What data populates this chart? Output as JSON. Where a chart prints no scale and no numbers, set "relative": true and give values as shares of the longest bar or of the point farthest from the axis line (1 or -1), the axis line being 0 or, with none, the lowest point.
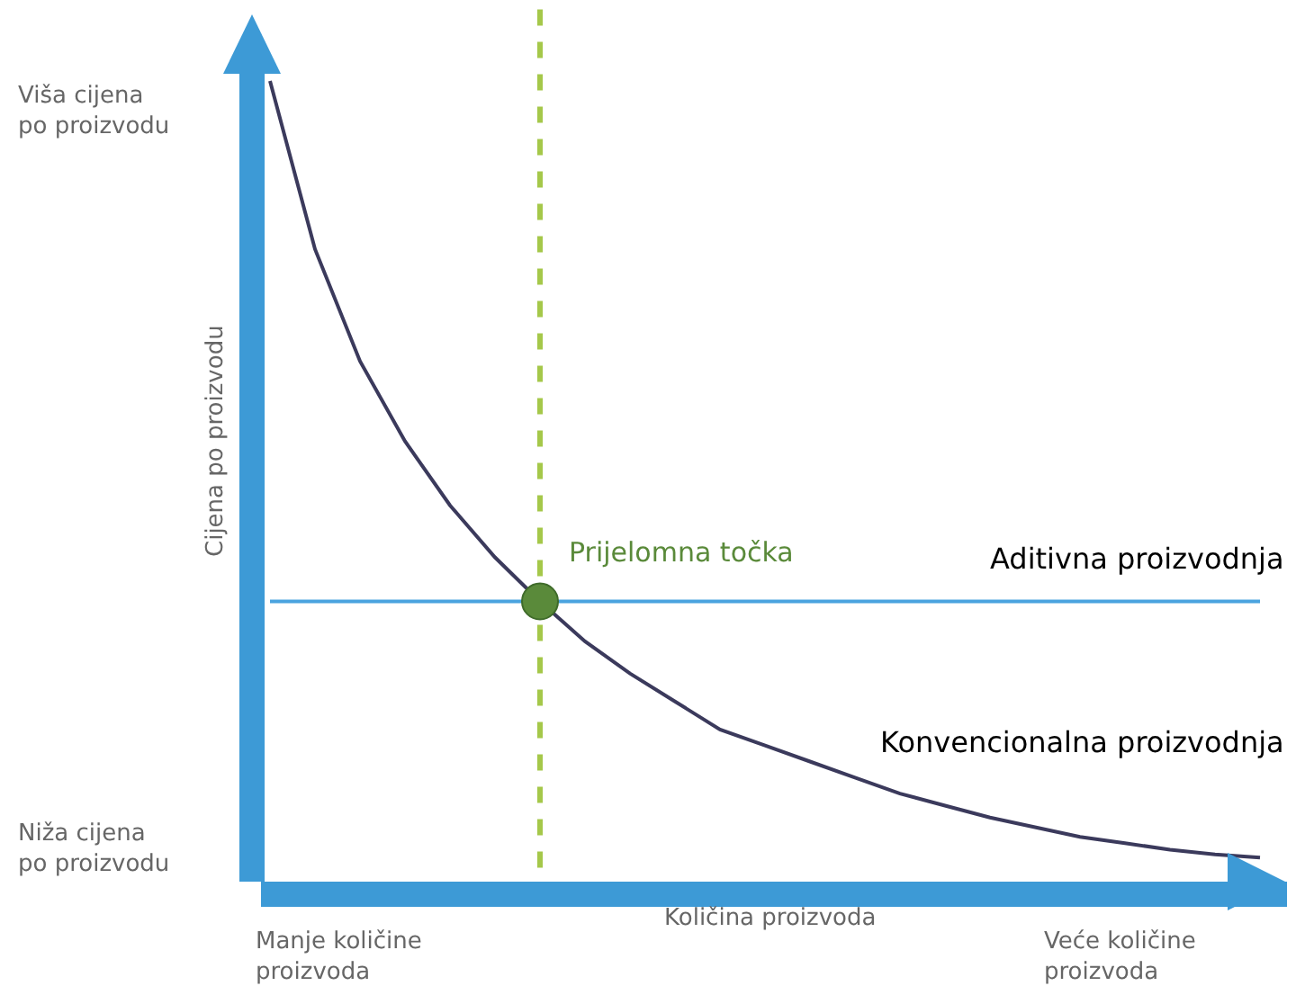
{
  "chart_data": {
    "type": "line",
    "relative": true,
    "xlabel": "Količina proizvoda",
    "ylabel": "Cijena po proizvodu",
    "categories": [
      null,
      null,
      null,
      null,
      null,
      null,
      null,
      null,
      null,
      null,
      null,
      null,
      null,
      null,
      null,
      null,
      null,
      null,
      null,
      null,
      null,
      null,
      null
    ],
    "series": [
      {
        "name": "Aditivna proizvodnja",
        "color": "#4aa3df",
        "values": [
          0.35,
          0.35,
          0.35,
          0.35,
          0.35,
          0.35,
          0.35,
          0.35,
          0.35,
          0.35,
          0.35,
          0.35,
          0.35,
          0.35,
          0.35,
          0.35,
          0.35,
          0.35,
          0.35,
          0.35,
          0.35,
          0.35,
          0.35
        ]
      },
      {
        "name": "Konvencionalna proizvodnja",
        "color": "#3b3a5c",
        "values": [
          1.0,
          0.79,
          0.65,
          0.55,
          0.47,
          0.405,
          0.35,
          0.3,
          0.26,
          0.225,
          0.19,
          0.17,
          0.15,
          0.13,
          0.11,
          0.095,
          0.08,
          0.068,
          0.056,
          0.048,
          0.04,
          0.034,
          0.03
        ]
      }
    ],
    "annotations": [
      "Viša cijena\npo proizvodu",
      "Niža cijena\npo proizvodu",
      "Manje količine\nproizvoda",
      "Veće količine\nproizvoda",
      "Prijelomna točka"
    ],
    "grid": false,
    "legend": false,
    "marker": "none",
    "line_style": "solid"
  }
}
